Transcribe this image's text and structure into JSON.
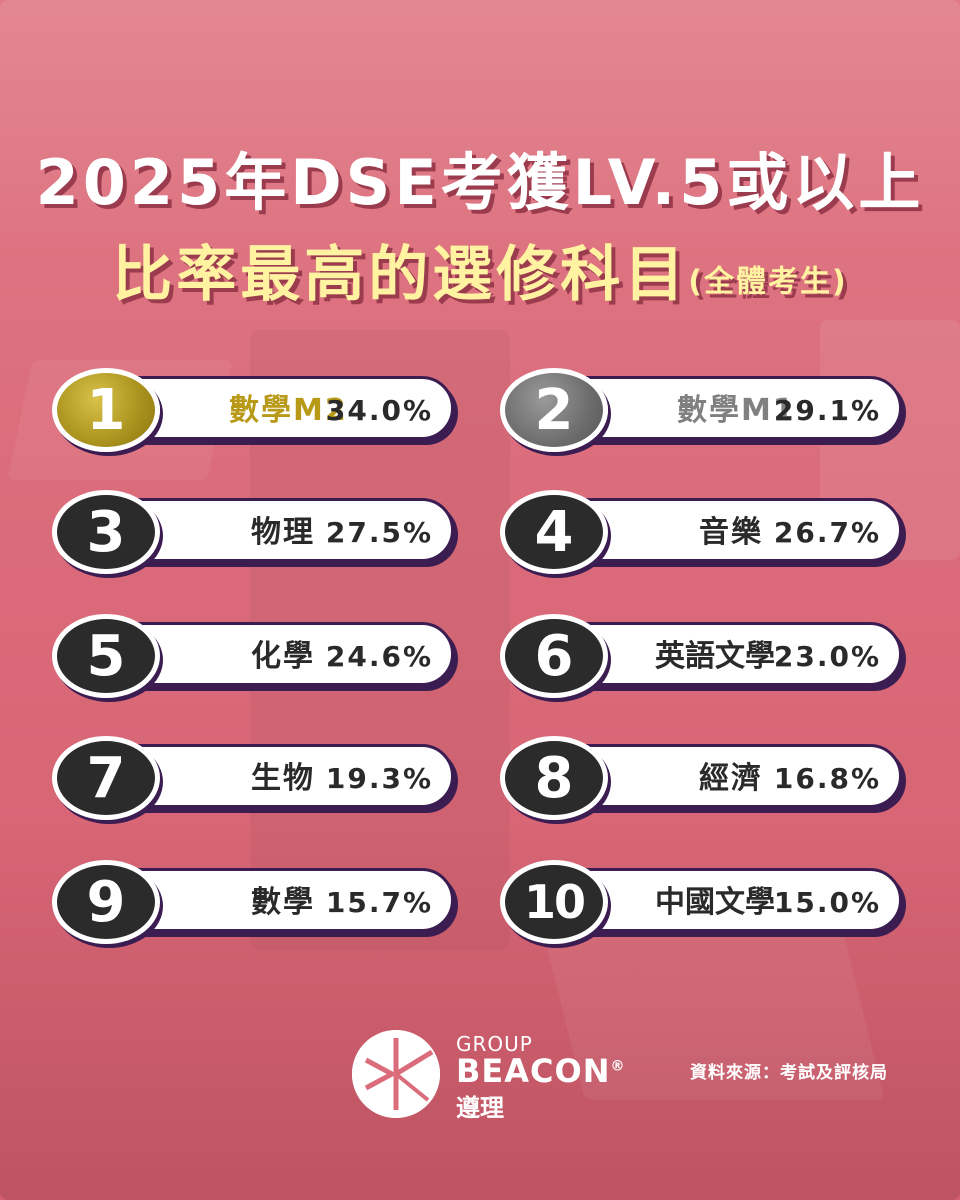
{
  "title_line1": "2025年DSE考獲LV.5或以上",
  "title_line2": "比率最高的選修科目",
  "title_note": "(全體考生)",
  "rankings": [
    {
      "rank": "1",
      "subject": "數學M2",
      "percent": "34.0%"
    },
    {
      "rank": "2",
      "subject": "數學M1",
      "percent": "29.1%"
    },
    {
      "rank": "3",
      "subject": "物理",
      "percent": "27.5%"
    },
    {
      "rank": "4",
      "subject": "音樂",
      "percent": "26.7%"
    },
    {
      "rank": "5",
      "subject": "化學",
      "percent": "24.6%"
    },
    {
      "rank": "6",
      "subject": "英語文學",
      "percent": "23.0%"
    },
    {
      "rank": "7",
      "subject": "生物",
      "percent": "19.3%"
    },
    {
      "rank": "8",
      "subject": "經濟",
      "percent": "16.8%"
    },
    {
      "rank": "9",
      "subject": "數學",
      "percent": "15.7%"
    },
    {
      "rank": "10",
      "subject": "中國文學",
      "percent": "15.0%"
    }
  ],
  "brand": {
    "group": "GROUP",
    "name": "BEACON",
    "registered": "®",
    "chinese": "遵理",
    "logo_icon": "beacon-logo-icon"
  },
  "source": "資料來源：考試及評核局",
  "colors": {
    "background": "#db6c7b",
    "title_yellow": "#fff2a0",
    "gold": "#b89a18",
    "silver": "#808080"
  }
}
